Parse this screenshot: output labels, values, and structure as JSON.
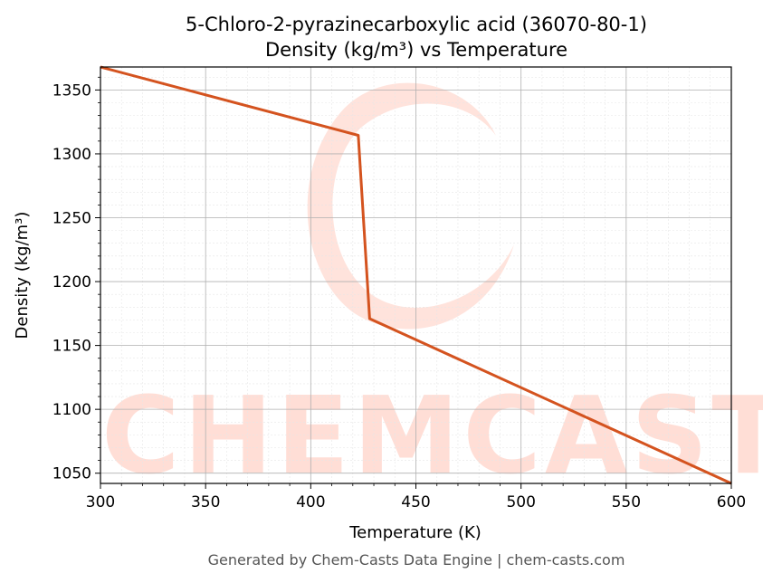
{
  "chart_data": {
    "type": "line",
    "title": "5-Chloro-2-pyrazinecarboxylic acid (36070-80-1)",
    "subtitle": "Density (kg/m³) vs Temperature",
    "xlabel": "Temperature (K)",
    "ylabel": "Density (kg/m³)",
    "xlim": [
      300,
      600
    ],
    "ylim": [
      1042,
      1368
    ],
    "x_ticks": [
      300,
      350,
      400,
      450,
      500,
      550,
      600
    ],
    "y_ticks": [
      1050,
      1100,
      1150,
      1200,
      1250,
      1300,
      1350
    ],
    "grid": true,
    "series": [
      {
        "color": "#d4531f",
        "x": [
          300,
          422.6,
          428,
          600
        ],
        "y": [
          1368,
          1314.5,
          1171,
          1042
        ]
      }
    ]
  },
  "watermark": {
    "text": "CHEMCASTS",
    "color": "#ffd9d0"
  },
  "footer": "Generated by Chem-Casts Data Engine | chem-casts.com"
}
